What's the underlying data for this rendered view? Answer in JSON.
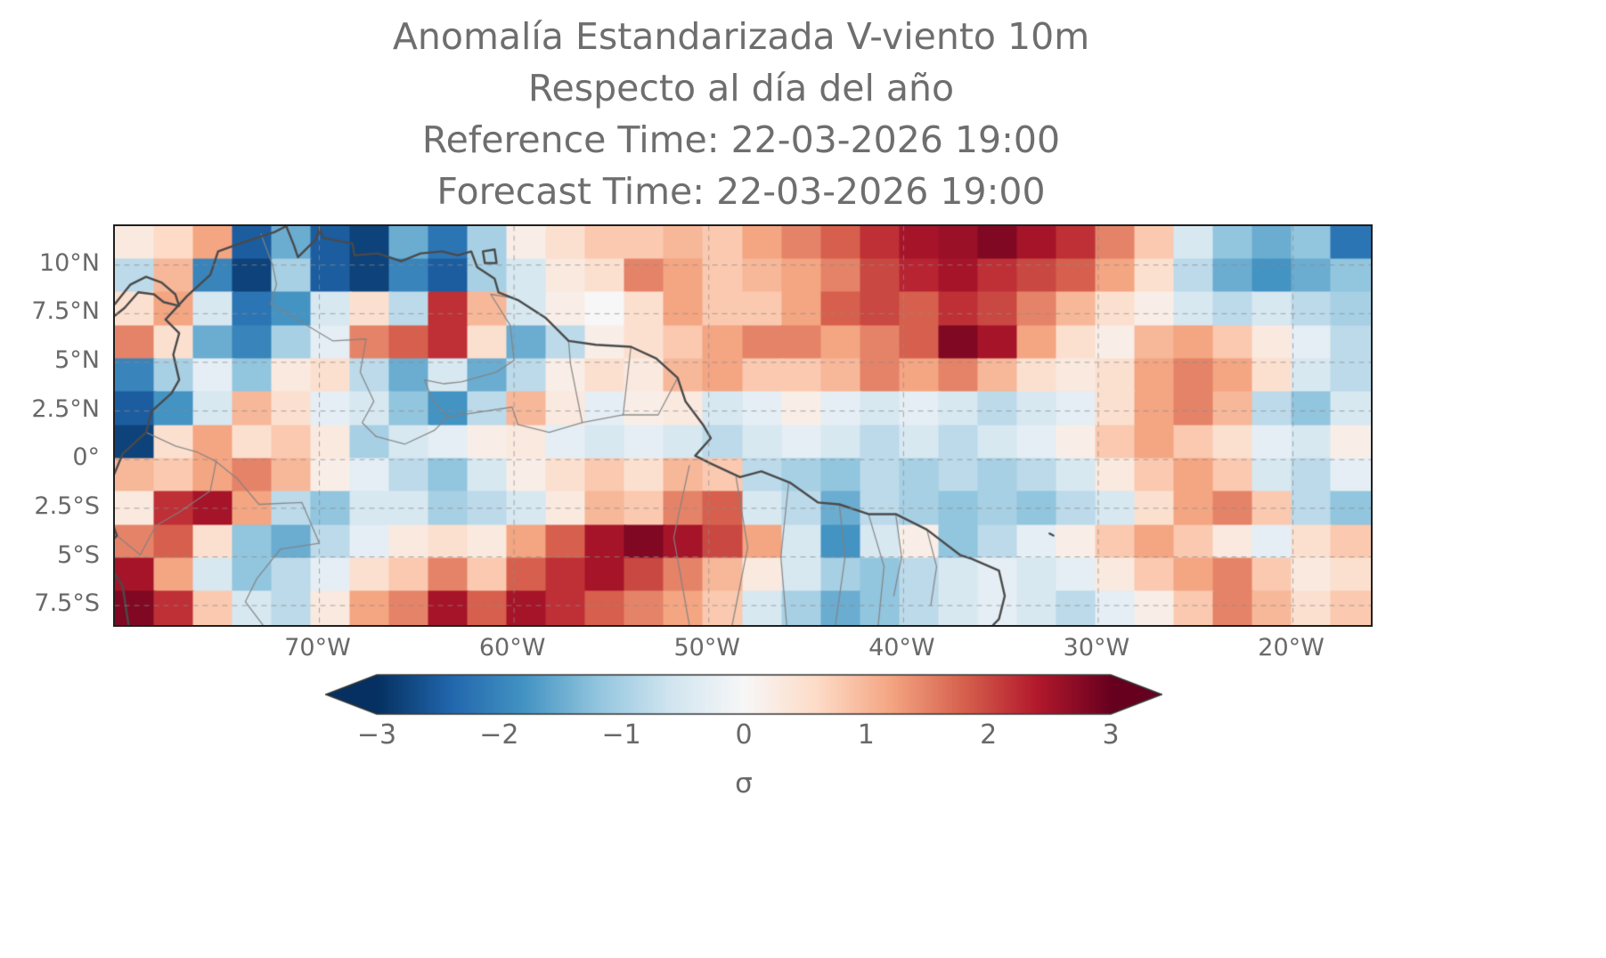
{
  "title": {
    "line1": "Anomalía Estandarizada V-viento 10m",
    "line2": "Respecto al día del año",
    "line3": "Reference Time: 22-03-2026 19:00",
    "line4": "Forecast Time: 22-03-2026 19:00"
  },
  "chart_data": {
    "type": "heatmap",
    "colormap": "RdBu_r",
    "vmin": -3,
    "vmax": 3,
    "lon_range": [
      -80.5,
      -16.0
    ],
    "lat_range": [
      -8.5,
      12.0
    ],
    "x_tick_lons": [
      -70,
      -60,
      -50,
      -40,
      -30,
      -20
    ],
    "x_tick_labels": [
      "70°W",
      "60°W",
      "50°W",
      "40°W",
      "30°W",
      "20°W"
    ],
    "y_tick_lats": [
      10,
      7.5,
      5,
      2.5,
      0,
      -2.5,
      -5,
      -7.5
    ],
    "y_tick_labels": [
      "10°N",
      "7.5°N",
      "5°N",
      "2.5°N",
      "0°",
      "2.5°S",
      "5°S",
      "7.5°S"
    ],
    "colorbar": {
      "ticks": [
        -3,
        -2,
        -1,
        0,
        1,
        2,
        3
      ],
      "tick_labels": [
        "−3",
        "−2",
        "−1",
        "0",
        "1",
        "2",
        "3"
      ],
      "label": "σ",
      "extend": "both"
    },
    "colormap_stops": [
      "#053061",
      "#2166ac",
      "#4393c3",
      "#92c5de",
      "#d1e5f0",
      "#f7f7f7",
      "#fddbc7",
      "#f4a582",
      "#d6604d",
      "#b2182b",
      "#67001f"
    ],
    "grid": {
      "cols": 32,
      "rows": 12,
      "values": [
        [
          0.3,
          0.6,
          1.2,
          -2.5,
          -1.5,
          -2.5,
          -2.8,
          -1.5,
          -2.2,
          -1.0,
          0.2,
          0.5,
          0.8,
          0.8,
          1.0,
          0.8,
          1.2,
          1.5,
          1.8,
          2.2,
          2.5,
          2.6,
          2.8,
          2.5,
          2.2,
          1.5,
          0.8,
          -0.5,
          -1.2,
          -1.5,
          -1.2,
          -2.2
        ],
        [
          -0.8,
          1.0,
          -2.0,
          -2.8,
          -1.0,
          -2.5,
          -2.8,
          -2.0,
          -2.5,
          -1.0,
          -0.5,
          0.3,
          0.5,
          1.5,
          1.2,
          0.8,
          1.0,
          1.2,
          1.5,
          2.0,
          2.3,
          2.5,
          2.2,
          2.0,
          1.8,
          1.2,
          0.5,
          -0.8,
          -1.5,
          -1.8,
          -1.5,
          -1.2
        ],
        [
          0.5,
          1.2,
          -0.5,
          -2.2,
          -1.8,
          -0.5,
          0.5,
          -0.8,
          2.2,
          1.0,
          -0.5,
          0.2,
          0.0,
          0.5,
          1.2,
          0.8,
          0.8,
          1.2,
          1.8,
          2.0,
          1.8,
          2.2,
          2.0,
          1.5,
          1.0,
          0.5,
          0.2,
          -0.5,
          -0.8,
          -0.5,
          -0.8,
          -1.0
        ],
        [
          1.5,
          0.5,
          -1.5,
          -2.0,
          -1.0,
          -0.3,
          1.5,
          1.8,
          2.2,
          0.5,
          -1.5,
          -0.8,
          0.2,
          0.5,
          0.8,
          1.2,
          1.5,
          1.5,
          1.2,
          1.5,
          1.8,
          2.8,
          2.5,
          1.2,
          0.5,
          0.2,
          1.0,
          1.2,
          0.8,
          0.3,
          -0.3,
          -0.8
        ],
        [
          -2.0,
          -1.0,
          -0.3,
          -1.2,
          0.3,
          0.5,
          -0.8,
          -1.5,
          -0.5,
          -1.5,
          -0.8,
          0.2,
          0.5,
          0.3,
          1.0,
          1.2,
          0.8,
          0.8,
          1.0,
          1.5,
          1.2,
          1.5,
          1.0,
          0.5,
          0.3,
          0.5,
          1.2,
          1.5,
          1.2,
          0.5,
          -0.5,
          -0.8
        ],
        [
          -2.5,
          -1.8,
          -0.5,
          1.0,
          0.5,
          -0.3,
          -0.5,
          -1.2,
          -1.8,
          -0.8,
          1.0,
          0.3,
          -0.3,
          0.2,
          0.3,
          -0.5,
          -0.3,
          0.2,
          -0.3,
          -0.5,
          -0.3,
          -0.5,
          -0.8,
          -0.5,
          -0.3,
          0.5,
          1.2,
          1.5,
          1.0,
          -0.8,
          -1.2,
          -0.5
        ],
        [
          -2.8,
          0.5,
          1.2,
          0.5,
          0.8,
          0.3,
          -1.0,
          -0.5,
          -0.3,
          0.2,
          0.3,
          -0.3,
          -0.5,
          -0.3,
          -0.5,
          -0.8,
          -0.5,
          -0.3,
          -0.5,
          -0.8,
          -0.5,
          -0.8,
          -0.5,
          -0.3,
          0.2,
          0.8,
          1.2,
          0.8,
          0.5,
          -0.3,
          -0.5,
          0.2
        ],
        [
          1.0,
          0.8,
          1.2,
          1.5,
          1.0,
          0.2,
          -0.3,
          -0.8,
          -1.2,
          -0.5,
          0.2,
          0.5,
          0.8,
          0.5,
          1.0,
          0.8,
          -0.8,
          -1.0,
          -1.2,
          -0.8,
          -1.0,
          -0.8,
          -1.0,
          -0.8,
          -0.5,
          0.3,
          0.8,
          1.2,
          0.8,
          -0.5,
          -0.8,
          -0.3
        ],
        [
          0.3,
          2.2,
          2.5,
          1.2,
          -0.8,
          -1.2,
          -0.5,
          -0.5,
          -1.0,
          -0.8,
          -0.5,
          0.3,
          1.0,
          0.8,
          1.5,
          1.8,
          -0.5,
          -0.8,
          -1.5,
          -0.8,
          -1.0,
          -1.2,
          -1.0,
          -1.2,
          -0.8,
          -0.5,
          0.5,
          1.2,
          1.5,
          0.8,
          -0.8,
          -1.2
        ],
        [
          1.5,
          1.8,
          0.5,
          -1.2,
          -1.5,
          -0.8,
          -0.3,
          0.3,
          0.5,
          0.3,
          1.2,
          1.8,
          2.5,
          2.8,
          2.5,
          2.0,
          1.2,
          -0.5,
          -1.8,
          -0.5,
          0.2,
          -1.2,
          -0.8,
          -0.3,
          0.2,
          0.8,
          1.2,
          0.8,
          0.3,
          -0.3,
          0.5,
          0.8
        ],
        [
          2.5,
          1.2,
          -0.5,
          -1.2,
          -0.8,
          -0.3,
          0.5,
          0.8,
          1.5,
          0.8,
          1.8,
          2.2,
          2.5,
          2.0,
          1.5,
          1.0,
          0.3,
          -0.5,
          -1.0,
          -1.2,
          -0.8,
          -0.5,
          -0.3,
          -0.5,
          -0.3,
          0.3,
          0.8,
          1.2,
          1.5,
          0.8,
          0.3,
          0.5
        ],
        [
          2.8,
          2.2,
          0.8,
          -0.5,
          -0.8,
          0.3,
          1.2,
          1.5,
          2.5,
          1.8,
          2.5,
          2.2,
          1.8,
          1.5,
          1.2,
          0.8,
          -0.5,
          -1.0,
          -1.5,
          -1.2,
          -0.8,
          -0.5,
          -0.3,
          -0.5,
          -0.8,
          -0.3,
          0.2,
          0.8,
          1.5,
          1.0,
          0.5,
          0.8
        ]
      ]
    },
    "coastlines": [
      [
        [
          -79.8,
          -8.5
        ],
        [
          -80.1,
          -6.5
        ],
        [
          -81.2,
          -4.8
        ],
        [
          -80.4,
          -3.9
        ],
        [
          -81.0,
          -2.2
        ],
        [
          -80.6,
          -0.9
        ],
        [
          -80.1,
          0.3
        ],
        [
          -78.9,
          1.4
        ],
        [
          -78.6,
          2.5
        ],
        [
          -77.6,
          3.4
        ],
        [
          -77.2,
          4.1
        ],
        [
          -77.5,
          5.4
        ],
        [
          -77.2,
          6.5
        ],
        [
          -77.9,
          7.2
        ],
        [
          -76.8,
          8.4
        ],
        [
          -75.6,
          9.5
        ],
        [
          -75.2,
          10.7
        ],
        [
          -74.1,
          11.1
        ],
        [
          -72.3,
          11.7
        ],
        [
          -71.7,
          12.0
        ],
        [
          -71.3,
          11.0
        ],
        [
          -71.1,
          10.4
        ],
        [
          -70.2,
          11.3
        ],
        [
          -70.0,
          11.9
        ],
        [
          -69.8,
          11.4
        ],
        [
          -68.3,
          11.1
        ],
        [
          -68.2,
          10.5
        ],
        [
          -67.0,
          10.6
        ],
        [
          -65.8,
          10.2
        ],
        [
          -64.8,
          10.6
        ],
        [
          -63.7,
          10.7
        ],
        [
          -62.9,
          10.5
        ],
        [
          -62.2,
          10.7
        ],
        [
          -61.9,
          9.9
        ],
        [
          -61.0,
          9.3
        ],
        [
          -60.8,
          8.6
        ],
        [
          -59.8,
          8.2
        ],
        [
          -58.4,
          7.3
        ],
        [
          -57.2,
          6.1
        ],
        [
          -55.8,
          5.9
        ],
        [
          -54.0,
          5.8
        ],
        [
          -52.7,
          5.2
        ],
        [
          -51.6,
          4.2
        ],
        [
          -51.2,
          3.0
        ],
        [
          -50.3,
          1.8
        ],
        [
          -49.9,
          1.1
        ],
        [
          -50.7,
          0.2
        ],
        [
          -49.9,
          -0.2
        ],
        [
          -48.4,
          -0.9
        ],
        [
          -47.3,
          -0.6
        ],
        [
          -45.8,
          -1.2
        ],
        [
          -44.4,
          -2.2
        ],
        [
          -43.3,
          -2.3
        ],
        [
          -41.8,
          -2.8
        ],
        [
          -40.4,
          -2.8
        ],
        [
          -38.8,
          -3.6
        ],
        [
          -37.1,
          -4.9
        ],
        [
          -36.5,
          -5.1
        ],
        [
          -35.1,
          -5.7
        ],
        [
          -34.8,
          -7.0
        ],
        [
          -35.1,
          -8.2
        ],
        [
          -35.4,
          -8.5
        ]
      ],
      [
        [
          -80.5,
          8.0
        ],
        [
          -79.7,
          9.0
        ],
        [
          -78.9,
          9.4
        ],
        [
          -78.1,
          9.1
        ],
        [
          -77.4,
          8.5
        ],
        [
          -77.2,
          7.9
        ],
        [
          -78.0,
          8.1
        ],
        [
          -78.5,
          8.5
        ],
        [
          -79.3,
          8.6
        ],
        [
          -80.0,
          7.8
        ],
        [
          -80.5,
          7.4
        ]
      ],
      [
        [
          -61.6,
          10.7
        ],
        [
          -61.0,
          10.8
        ],
        [
          -60.9,
          10.1
        ],
        [
          -61.5,
          10.1
        ],
        [
          -61.6,
          10.7
        ]
      ],
      [
        [
          -32.5,
          -3.8
        ],
        [
          -32.3,
          -3.9
        ]
      ]
    ],
    "borders": [
      [
        [
          -73.0,
          11.6
        ],
        [
          -72.4,
          10.0
        ],
        [
          -72.2,
          9.0
        ],
        [
          -72.5,
          8.0
        ],
        [
          -70.8,
          7.0
        ],
        [
          -69.3,
          6.1
        ],
        [
          -67.6,
          6.2
        ],
        [
          -67.9,
          4.5
        ],
        [
          -67.2,
          3.0
        ],
        [
          -67.8,
          1.9
        ],
        [
          -67.1,
          1.2
        ]
      ],
      [
        [
          -78.9,
          1.4
        ],
        [
          -77.4,
          0.7
        ],
        [
          -76.3,
          0.4
        ],
        [
          -75.3,
          -0.1
        ]
      ],
      [
        [
          -80.4,
          -3.9
        ],
        [
          -79.2,
          -4.9
        ],
        [
          -78.4,
          -3.4
        ],
        [
          -77.2,
          -2.7
        ],
        [
          -75.6,
          -1.6
        ],
        [
          -75.3,
          -0.1
        ]
      ],
      [
        [
          -75.3,
          -0.1
        ],
        [
          -74.2,
          -1.0
        ],
        [
          -73.1,
          -2.3
        ],
        [
          -70.9,
          -2.2
        ],
        [
          -70.0,
          -4.3
        ],
        [
          -72.0,
          -4.6
        ],
        [
          -73.2,
          -6.1
        ],
        [
          -73.8,
          -7.3
        ],
        [
          -72.9,
          -8.5
        ]
      ],
      [
        [
          -67.1,
          1.2
        ],
        [
          -65.6,
          0.8
        ],
        [
          -64.1,
          1.5
        ],
        [
          -63.4,
          2.2
        ],
        [
          -64.2,
          3.1
        ],
        [
          -64.6,
          4.1
        ],
        [
          -63.6,
          3.9
        ],
        [
          -62.7,
          4.0
        ],
        [
          -60.9,
          4.5
        ],
        [
          -60.0,
          5.1
        ],
        [
          -60.2,
          6.9
        ],
        [
          -61.2,
          8.5
        ],
        [
          -60.0,
          8.3
        ]
      ],
      [
        [
          -57.2,
          6.1
        ],
        [
          -57.1,
          4.9
        ],
        [
          -56.5,
          1.9
        ]
      ],
      [
        [
          -54.0,
          5.8
        ],
        [
          -54.4,
          2.3
        ]
      ],
      [
        [
          -51.6,
          4.2
        ],
        [
          -52.6,
          2.3
        ],
        [
          -54.4,
          2.3
        ],
        [
          -56.5,
          1.9
        ],
        [
          -58.2,
          1.4
        ],
        [
          -59.8,
          1.8
        ],
        [
          -60.1,
          2.7
        ],
        [
          -63.4,
          2.2
        ]
      ],
      [
        [
          -51.0,
          -0.3
        ],
        [
          -51.8,
          -4.0
        ],
        [
          -51.0,
          -8.5
        ]
      ],
      [
        [
          -48.6,
          -0.9
        ],
        [
          -48.0,
          -4.5
        ],
        [
          -48.8,
          -8.5
        ]
      ],
      [
        [
          -45.9,
          -1.2
        ],
        [
          -46.3,
          -5.0
        ],
        [
          -46.0,
          -8.5
        ]
      ],
      [
        [
          -43.3,
          -2.3
        ],
        [
          -43.0,
          -5.0
        ],
        [
          -43.5,
          -8.5
        ]
      ],
      [
        [
          -41.8,
          -2.8
        ],
        [
          -41.0,
          -5.5
        ],
        [
          -41.3,
          -8.5
        ]
      ],
      [
        [
          -40.4,
          -2.8
        ],
        [
          -40.1,
          -5.0
        ],
        [
          -40.5,
          -7.0
        ]
      ],
      [
        [
          -38.8,
          -3.6
        ],
        [
          -38.3,
          -5.5
        ],
        [
          -38.6,
          -7.5
        ]
      ]
    ]
  }
}
